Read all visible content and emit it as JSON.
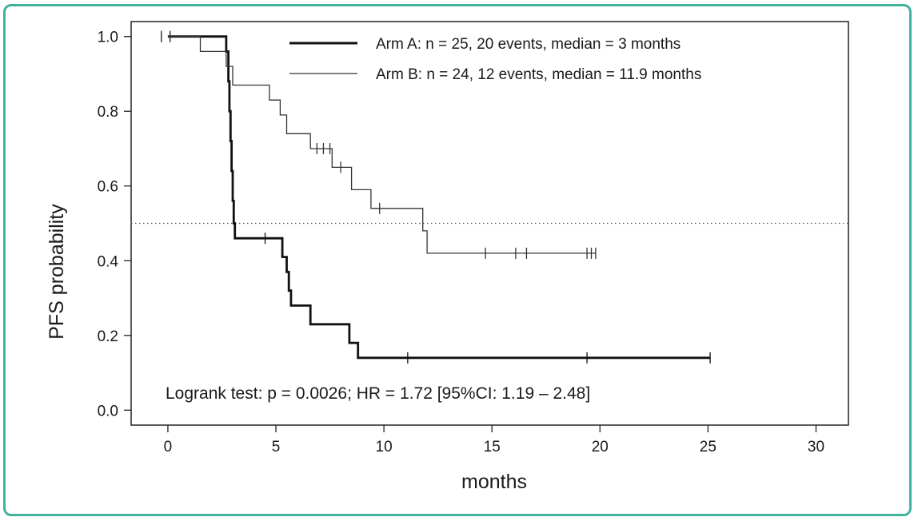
{
  "chart_data": {
    "type": "line",
    "xlabel": "months",
    "ylabel": "PFS probability",
    "xlim": [
      -1.7,
      31.5
    ],
    "ylim": [
      -0.04,
      1.04
    ],
    "xticks": [
      0,
      5,
      10,
      15,
      20,
      25,
      30
    ],
    "xtick_labels": [
      "0",
      "5",
      "10",
      "15",
      "20",
      "25",
      "30"
    ],
    "yticks": [
      0.0,
      0.2,
      0.4,
      0.6,
      0.8,
      1.0
    ],
    "ytick_labels": [
      "0.0",
      "0.2",
      "0.4",
      "0.6",
      "0.8",
      "1.0"
    ],
    "grid": false,
    "legend_position": "top-right",
    "reference_line": {
      "y": 0.5,
      "style": "dotted"
    },
    "annotation": "Logrank test: p = 0.0026; HR = 1.72 [95%CI: 1.19 – 2.48]",
    "series": [
      {
        "name": "Arm A: n = 25, 20 events, median = 3 months",
        "style": "thick",
        "steps": [
          [
            0,
            1.0
          ],
          [
            2.7,
            0.96
          ],
          [
            2.8,
            0.88
          ],
          [
            2.85,
            0.8
          ],
          [
            2.9,
            0.72
          ],
          [
            2.95,
            0.64
          ],
          [
            3.0,
            0.56
          ],
          [
            3.05,
            0.5
          ],
          [
            3.1,
            0.46
          ],
          [
            5.3,
            0.41
          ],
          [
            5.5,
            0.37
          ],
          [
            5.6,
            0.32
          ],
          [
            5.7,
            0.28
          ],
          [
            6.6,
            0.23
          ],
          [
            8.4,
            0.18
          ],
          [
            8.8,
            0.14
          ]
        ],
        "end": 25.1,
        "censored": [
          [
            -0.3,
            1.0
          ],
          [
            0.1,
            1.0
          ],
          [
            4.5,
            0.46
          ],
          [
            11.1,
            0.14
          ],
          [
            19.4,
            0.14
          ],
          [
            25.1,
            0.14
          ]
        ]
      },
      {
        "name": "Arm B: n = 24, 12 events, median = 11.9 months",
        "style": "thin",
        "steps": [
          [
            0,
            1.0
          ],
          [
            1.5,
            0.96
          ],
          [
            2.7,
            0.92
          ],
          [
            3.0,
            0.87
          ],
          [
            4.7,
            0.83
          ],
          [
            5.2,
            0.79
          ],
          [
            5.5,
            0.74
          ],
          [
            6.6,
            0.7
          ],
          [
            7.6,
            0.65
          ],
          [
            8.5,
            0.59
          ],
          [
            9.4,
            0.54
          ],
          [
            11.8,
            0.48
          ],
          [
            12.0,
            0.42
          ]
        ],
        "end": 19.8,
        "censored": [
          [
            -0.3,
            1.0
          ],
          [
            0.1,
            1.0
          ],
          [
            6.9,
            0.7
          ],
          [
            7.2,
            0.7
          ],
          [
            7.5,
            0.7
          ],
          [
            8.0,
            0.65
          ],
          [
            9.8,
            0.54
          ],
          [
            14.7,
            0.42
          ],
          [
            16.1,
            0.42
          ],
          [
            16.6,
            0.42
          ],
          [
            19.4,
            0.42
          ],
          [
            19.6,
            0.42
          ],
          [
            19.8,
            0.42
          ]
        ]
      }
    ]
  }
}
